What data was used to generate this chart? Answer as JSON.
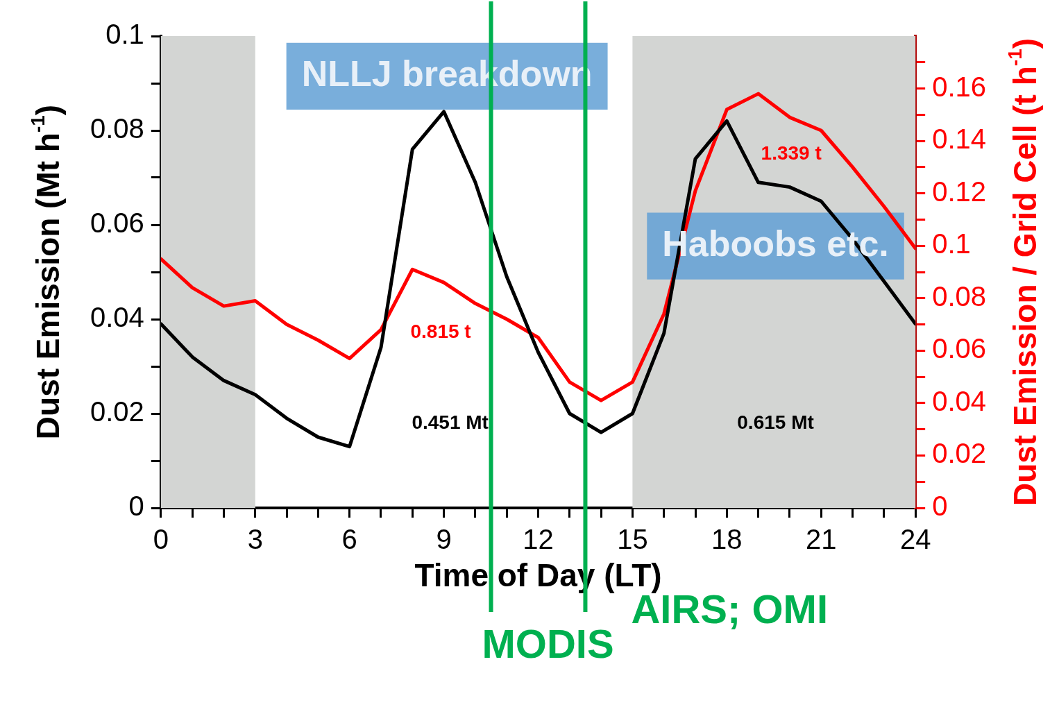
{
  "chart_data": {
    "type": "line",
    "xlabel": "Time of Day (LT)",
    "ylabel": "Dust Emission (Mt h$^{-1}$)",
    "y2label": "Dust Emission / Grid Cell (t h$^{-1}$)",
    "x": [
      0,
      1,
      2,
      3,
      4,
      5,
      6,
      7,
      8,
      9,
      10,
      11,
      12,
      13,
      14,
      15,
      16,
      17,
      18,
      19,
      20,
      21,
      22,
      23,
      24
    ],
    "series": [
      {
        "color": "#000000",
        "values": [
          0.039,
          0.032,
          0.027,
          0.024,
          0.019,
          0.015,
          0.013,
          0.034,
          0.076,
          0.084,
          0.069,
          0.049,
          0.033,
          0.02,
          0.016,
          0.02,
          0.037,
          0.074,
          0.082,
          0.069,
          0.068,
          0.065,
          0.057,
          0.048,
          0.039
        ]
      },
      {
        "color": "#ff0000",
        "axis": "y2",
        "values": [
          0.095,
          0.084,
          0.077,
          0.079,
          0.07,
          0.064,
          0.057,
          0.068,
          0.091,
          0.086,
          0.078,
          0.072,
          0.065,
          0.048,
          0.041,
          0.048,
          0.074,
          0.121,
          0.152,
          0.158,
          0.149,
          0.144,
          0.13,
          0.115,
          0.099
        ]
      }
    ],
    "xlim": [
      0,
      24
    ],
    "xticks": [
      0,
      {
        "value": 1,
        "label": null
      },
      {
        "value": 2,
        "label": null
      },
      3,
      {
        "value": 4,
        "label": null
      },
      {
        "value": 5,
        "label": null
      },
      6,
      {
        "value": 7,
        "label": null
      },
      {
        "value": 8,
        "label": null
      },
      9,
      {
        "value": 10,
        "label": null
      },
      {
        "value": 11,
        "label": null
      },
      12,
      {
        "value": 13,
        "label": null
      },
      {
        "value": 14,
        "label": null
      },
      15,
      {
        "value": 16,
        "label": null
      },
      {
        "value": 17,
        "label": null
      },
      18,
      {
        "value": 19,
        "label": null
      },
      {
        "value": 20,
        "label": null
      },
      21,
      {
        "value": 22,
        "label": null
      },
      {
        "value": 23,
        "label": null
      },
      24
    ],
    "ylim": [
      0,
      0.1
    ],
    "yticks": [
      0,
      {
        "value": 0.01,
        "label": null
      },
      0.02,
      {
        "value": 0.03,
        "label": null
      },
      0.04,
      {
        "value": 0.05,
        "label": null
      },
      0.06,
      {
        "value": 0.07,
        "label": null
      },
      0.08,
      {
        "value": 0.09,
        "label": null
      },
      0.1
    ],
    "y2lim": [
      0,
      0.18
    ],
    "y2ticks": [
      0,
      {
        "value": 0.01,
        "label": null
      },
      0.02,
      {
        "value": 0.03,
        "label": null
      },
      0.04,
      {
        "value": 0.05,
        "label": null
      },
      0.06,
      {
        "value": 0.07,
        "label": null
      },
      0.08,
      {
        "value": 0.09,
        "label": null
      },
      0.1,
      {
        "value": 0.11,
        "label": null
      },
      0.12,
      {
        "value": 0.13,
        "label": null
      },
      0.14,
      {
        "value": 0.15,
        "label": null
      },
      0.16,
      {
        "value": 0.17,
        "label": null
      }
    ],
    "bands": [
      {
        "axis": "x",
        "from": 0,
        "to": 3,
        "color": "#d3d5d3"
      },
      {
        "axis": "x",
        "from": 15,
        "to": 24,
        "color": "#d3d5d3"
      }
    ],
    "ref_lines": [
      {
        "axis": "x",
        "value": 10.5,
        "label": "MODIS",
        "color": "#00b050"
      },
      {
        "axis": "x",
        "value": 13.5,
        "label": "AIRS; OMI",
        "color": "#00b050"
      }
    ],
    "annotations": [
      "NLLJ breakdown",
      "Haboobs etc.",
      "0.815 t",
      "1.339 t",
      "0.451 Mt",
      "0.615 Mt"
    ],
    "grid": false,
    "legend": false,
    "marker": "none",
    "line_style": "solid"
  }
}
